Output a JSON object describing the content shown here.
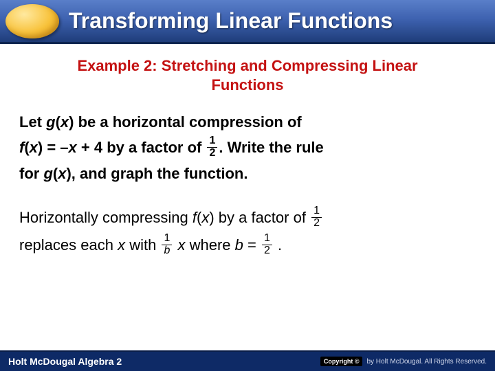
{
  "header": {
    "title": "Transforming Linear Functions",
    "ellipse_gradient": [
      "#ffe9a0",
      "#f8c23a",
      "#e09a10"
    ],
    "bar_gradient": [
      "#5a7fc9",
      "#3e62b0",
      "#1f3d7a"
    ]
  },
  "example": {
    "title_line1": "Example 2: Stretching and Compressing Linear",
    "title_line2": "Functions",
    "title_color": "#c41212"
  },
  "problem": {
    "p1_a": "Let ",
    "p1_g": "g",
    "p1_b": "(",
    "p1_x1": "x",
    "p1_c": ") be a horizontal compression of",
    "p2_f": "f",
    "p2_a": "(",
    "p2_x": "x",
    "p2_b": ") = –",
    "p2_x2": "x",
    "p2_c": " + 4  by a factor of ",
    "frac1_num": "1",
    "frac1_den": "2",
    "p2_d": ". Write the rule",
    "p3_a": "for ",
    "p3_g": "g",
    "p3_b": "(",
    "p3_x": "x",
    "p3_c": "), and graph the function."
  },
  "explain": {
    "l1_a": "Horizontally compressing ",
    "l1_f": "f",
    "l1_b": "(",
    "l1_x": "x",
    "l1_c": ") by a factor of ",
    "frac2_num": "1",
    "frac2_den": "2",
    "l2_a": "replaces each ",
    "l2_x1": "x",
    "l2_b": " with ",
    "frac3_num": "1",
    "frac3_den": "b",
    "l2_x2": "x",
    "l2_c": " where ",
    "l2_bvar": "b",
    "l2_d": " = ",
    "frac4_num": "1",
    "frac4_den": "2",
    "l2_e": " ."
  },
  "footer": {
    "left": "Holt McDougal Algebra 2",
    "badge": "Copyright ©",
    "right": "by Holt McDougal. All Rights Reserved.",
    "bg": "#0e2a66"
  }
}
